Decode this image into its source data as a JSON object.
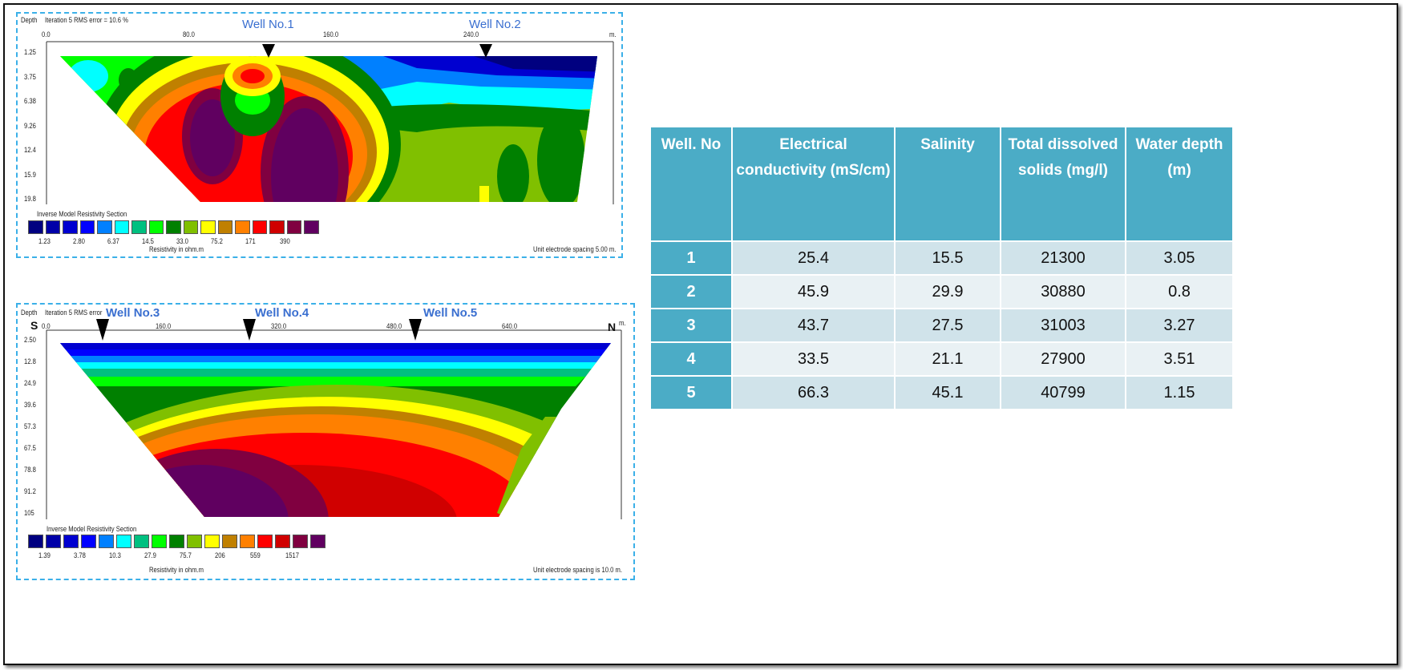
{
  "palette": [
    "#000080",
    "#0000a8",
    "#0000d0",
    "#0000ff",
    "#0080ff",
    "#00ffff",
    "#00c080",
    "#00ff00",
    "#008000",
    "#80c000",
    "#ffff00",
    "#c08000",
    "#ff8000",
    "#ff0000",
    "#d00000",
    "#800040",
    "#600060"
  ],
  "section1": {
    "depth_label": "Depth",
    "iteration": "Iteration 5 RMS error = 10.6 %",
    "x_ticks": [
      "0.0",
      "80.0",
      "160.0",
      "240.0"
    ],
    "x_unit": "m.",
    "depth_ticks": [
      "1.25",
      "3.75",
      "6.38",
      "9.26",
      "12.4",
      "15.9",
      "19.8"
    ],
    "wells": [
      "Well No.1",
      "Well No.2"
    ],
    "legend_title": "Inverse Model Resistivity Section",
    "legend_values": [
      "1.23",
      "2.80",
      "6.37",
      "14.5",
      "33.0",
      "75.2",
      "171",
      "390"
    ],
    "legend_unit": "Resistivity in ohm.m",
    "spacing": "Unit electrode spacing 5.00 m."
  },
  "section2": {
    "depth_label": "Depth",
    "iteration": "Iteration 5 RMS error",
    "x_ticks": [
      "0.0",
      "160.0",
      "320.0",
      "480.0",
      "640.0"
    ],
    "x_unit": "m.",
    "south": "S",
    "north": "N",
    "depth_ticks": [
      "2.50",
      "12.8",
      "24.9",
      "39.6",
      "57.3",
      "67.5",
      "78.8",
      "91.2",
      "105"
    ],
    "wells": [
      "Well No.3",
      "Well No.4",
      "Well No.5"
    ],
    "legend_title": "Inverse Model Resistivity Section",
    "legend_values": [
      "1.39",
      "3.78",
      "10.3",
      "27.9",
      "75.7",
      "206",
      "559",
      "1517"
    ],
    "legend_unit": "Resistivity in ohm.m",
    "spacing": "Unit electrode spacing is 10.0 m."
  },
  "table": {
    "headers": [
      "Well. No",
      "Electrical conductivity (mS/cm)",
      "Salinity",
      "Total dissolved solids (mg/l)",
      "Water depth (m)"
    ],
    "rows": [
      [
        "1",
        "25.4",
        "15.5",
        "21300",
        "3.05"
      ],
      [
        "2",
        "45.9",
        "29.9",
        "30880",
        "0.8"
      ],
      [
        "3",
        "43.7",
        "27.5",
        "31003",
        "3.27"
      ],
      [
        "4",
        "33.5",
        "21.1",
        "27900",
        "3.51"
      ],
      [
        "5",
        "66.3",
        "45.1",
        "40799",
        "1.15"
      ]
    ],
    "header_color": "#4bacc6"
  }
}
